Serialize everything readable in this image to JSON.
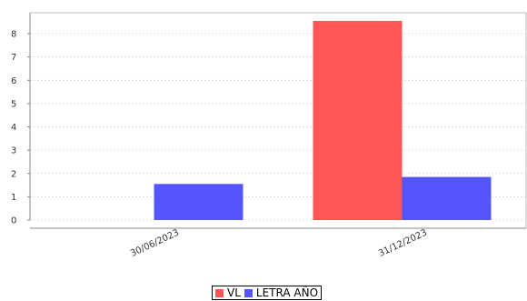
{
  "chart_data": {
    "type": "bar",
    "title": "",
    "xlabel": "",
    "ylabel": "",
    "categories": [
      "30/06/2023",
      "31/12/2023"
    ],
    "series": [
      {
        "name": "VL",
        "color": "#ff5555",
        "values": [
          0,
          8.55
        ]
      },
      {
        "name": "LETRA AÑO",
        "color": "#5555ff",
        "values": [
          1.55,
          1.85
        ]
      }
    ],
    "ylim": [
      0,
      8.9
    ],
    "yticks": [
      0,
      1,
      2,
      3,
      4,
      5,
      6,
      7,
      8
    ],
    "grid": true,
    "legend_position": "bottom"
  }
}
